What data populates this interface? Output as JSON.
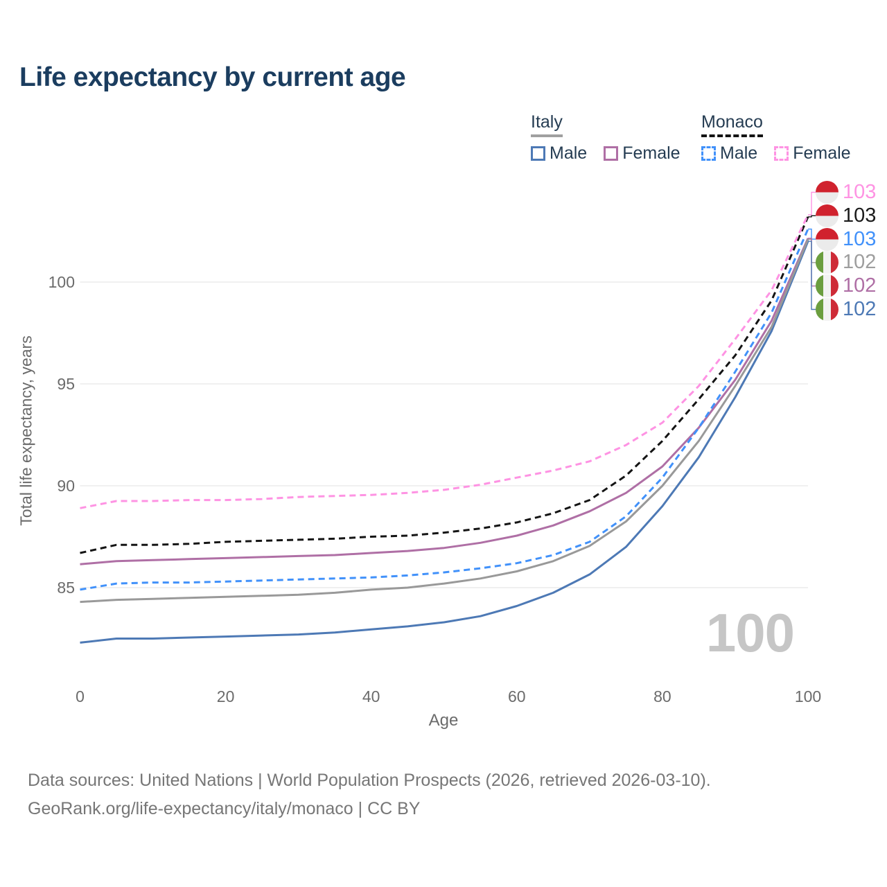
{
  "title": "Life expectancy by current age",
  "legend": {
    "groups": [
      {
        "name": "Italy",
        "line_style": "solid",
        "underline_color": "#a0a0a0",
        "items": [
          {
            "label": "Male",
            "color": "#4d79b5",
            "dashed": false
          },
          {
            "label": "Female",
            "color": "#af6fa5",
            "dashed": false
          }
        ]
      },
      {
        "name": "Monaco",
        "line_style": "dashed",
        "underline_color": "#141414",
        "items": [
          {
            "label": "Male",
            "color": "#4191fa",
            "dashed": true
          },
          {
            "label": "Female",
            "color": "#fe93e3",
            "dashed": true
          }
        ]
      }
    ]
  },
  "chart_data": {
    "type": "line",
    "title": "Life expectancy by current age",
    "xlabel": "Age",
    "ylabel": "Total life expectancy, years",
    "x": [
      0,
      5,
      10,
      15,
      20,
      25,
      30,
      35,
      40,
      45,
      50,
      55,
      60,
      65,
      70,
      75,
      80,
      85,
      90,
      95,
      100
    ],
    "xticks": [
      0,
      20,
      40,
      60,
      80,
      100
    ],
    "yticks": [
      85,
      90,
      95,
      100
    ],
    "ylim": [
      81.8,
      104.5
    ],
    "grid": "horizontal",
    "legend_position": "top-right",
    "series": [
      {
        "name": "Italy Male",
        "country": "Italy",
        "sex": "male",
        "color": "#4d79b5",
        "dashed": false,
        "values": [
          82.3,
          82.5,
          82.5,
          82.55,
          82.6,
          82.65,
          82.7,
          82.8,
          82.95,
          83.1,
          83.3,
          83.6,
          84.1,
          84.75,
          85.65,
          87.0,
          89.0,
          91.4,
          94.35,
          97.6,
          102.0
        ]
      },
      {
        "name": "Italy Female",
        "country": "Italy",
        "sex": "female",
        "color": "#af6fa5",
        "dashed": false,
        "values": [
          86.15,
          86.3,
          86.35,
          86.4,
          86.45,
          86.5,
          86.55,
          86.6,
          86.7,
          86.8,
          86.95,
          87.2,
          87.55,
          88.05,
          88.75,
          89.65,
          90.95,
          92.85,
          95.2,
          98.1,
          102.15
        ]
      },
      {
        "name": "Italy Both sexes",
        "country": "Italy",
        "sex": "both",
        "color": "#999999",
        "dashed": false,
        "values": [
          84.3,
          84.4,
          84.45,
          84.5,
          84.55,
          84.6,
          84.65,
          84.75,
          84.9,
          85.0,
          85.2,
          85.45,
          85.8,
          86.3,
          87.05,
          88.25,
          90.0,
          92.2,
          94.9,
          97.8,
          102.1
        ]
      },
      {
        "name": "Monaco Male",
        "country": "Monaco",
        "sex": "male",
        "color": "#4191fa",
        "dashed": true,
        "values": [
          84.9,
          85.2,
          85.25,
          85.25,
          85.3,
          85.35,
          85.4,
          85.45,
          85.5,
          85.6,
          85.75,
          85.95,
          86.2,
          86.6,
          87.25,
          88.5,
          90.4,
          92.85,
          95.6,
          98.5,
          102.6
        ]
      },
      {
        "name": "Monaco Both sexes",
        "country": "Monaco",
        "sex": "both",
        "color": "#141414",
        "dashed": true,
        "values": [
          86.7,
          87.1,
          87.1,
          87.15,
          87.25,
          87.3,
          87.35,
          87.4,
          87.5,
          87.55,
          87.7,
          87.9,
          88.2,
          88.65,
          89.3,
          90.5,
          92.2,
          94.25,
          96.4,
          99.1,
          103.2
        ]
      },
      {
        "name": "Monaco Female",
        "country": "Monaco",
        "sex": "female",
        "color": "#fe93e3",
        "dashed": true,
        "values": [
          88.9,
          89.25,
          89.25,
          89.3,
          89.3,
          89.35,
          89.45,
          89.5,
          89.55,
          89.65,
          89.8,
          90.05,
          90.4,
          90.75,
          91.2,
          92.0,
          93.1,
          94.9,
          97.2,
          99.6,
          103.3
        ]
      }
    ],
    "end_labels": [
      {
        "value": "103",
        "series_index": 5,
        "flag": "monaco",
        "color": "#fe93e3"
      },
      {
        "value": "103",
        "series_index": 4,
        "flag": "monaco",
        "color": "#1a1a1a"
      },
      {
        "value": "103",
        "series_index": 3,
        "flag": "monaco",
        "color": "#4191fa"
      },
      {
        "value": "102",
        "series_index": 2,
        "flag": "italy",
        "color": "#9e9e9e"
      },
      {
        "value": "102",
        "series_index": 1,
        "flag": "italy",
        "color": "#af6fa5"
      },
      {
        "value": "102",
        "series_index": 0,
        "flag": "italy",
        "color": "#4d79b5"
      }
    ],
    "flag_colors": {
      "monaco": [
        "#d0222e",
        "#ebebeb"
      ],
      "italy": [
        "#6b9e3f",
        "#f2f2f2",
        "#ce2b37"
      ]
    },
    "watermark": "100"
  },
  "footer": {
    "line1": "Data sources: United Nations | World Population Prospects (2026, retrieved 2026-03-10).",
    "line2": "GeoRank.org/life-expectancy/italy/monaco | CC BY"
  }
}
